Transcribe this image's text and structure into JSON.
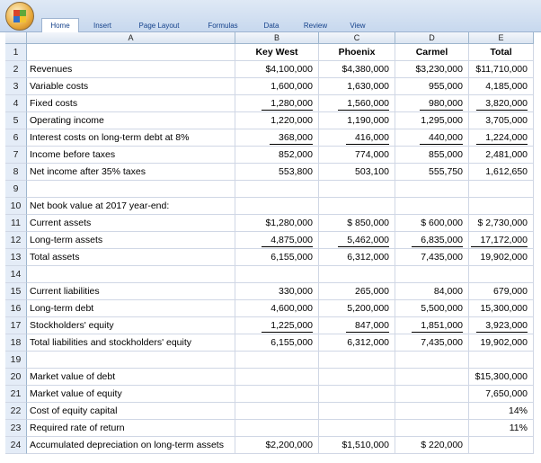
{
  "ribbon": {
    "tabs": [
      "Home",
      "Insert",
      "Page Layout",
      "Formulas",
      "Data",
      "Review",
      "View"
    ],
    "selected_tab": 0
  },
  "sheet": {
    "columns": [
      "A",
      "B",
      "C",
      "D",
      "E"
    ],
    "header_row": 1,
    "underlined_rows": [
      4,
      6,
      12,
      17
    ],
    "rows": [
      {
        "n": "1",
        "cells": [
          null,
          "Key West",
          "Phoenix",
          "Carmel",
          "Total"
        ]
      },
      {
        "n": "2",
        "cells": [
          "Revenues",
          "$4,100,000",
          "$4,380,000",
          "$3,230,000",
          "$11,710,000"
        ]
      },
      {
        "n": "3",
        "cells": [
          "Variable costs",
          "1,600,000",
          "1,630,000",
          "955,000",
          "4,185,000"
        ]
      },
      {
        "n": "4",
        "cells": [
          "Fixed costs",
          "1,280,000",
          "1,560,000",
          "980,000",
          "3,820,000"
        ]
      },
      {
        "n": "5",
        "cells": [
          "Operating income",
          "1,220,000",
          "1,190,000",
          "1,295,000",
          "3,705,000"
        ]
      },
      {
        "n": "6",
        "cells": [
          "Interest costs on long-term debt at 8%",
          "368,000",
          "416,000",
          "440,000",
          "1,224,000"
        ]
      },
      {
        "n": "7",
        "cells": [
          "Income before taxes",
          "852,000",
          "774,000",
          "855,000",
          "2,481,000"
        ]
      },
      {
        "n": "8",
        "cells": [
          "Net income after 35% taxes",
          "553,800",
          "503,100",
          "555,750",
          "1,612,650"
        ]
      },
      {
        "n": "9",
        "cells": [
          null,
          null,
          null,
          null,
          null
        ]
      },
      {
        "n": "10",
        "cells": [
          "Net book value at 2017 year-end:",
          null,
          null,
          null,
          null
        ]
      },
      {
        "n": "11",
        "cells": [
          "Current assets",
          "$1,280,000",
          "$ 850,000",
          "$ 600,000",
          "$ 2,730,000"
        ]
      },
      {
        "n": "12",
        "cells": [
          "Long-term assets",
          "4,875,000",
          "5,462,000",
          "6,835,000",
          "17,172,000"
        ]
      },
      {
        "n": "13",
        "cells": [
          "Total assets",
          "6,155,000",
          "6,312,000",
          "7,435,000",
          "19,902,000"
        ]
      },
      {
        "n": "14",
        "cells": [
          null,
          null,
          null,
          null,
          null
        ]
      },
      {
        "n": "15",
        "cells": [
          "Current liabilities",
          "330,000",
          "265,000",
          "84,000",
          "679,000"
        ]
      },
      {
        "n": "16",
        "cells": [
          "Long-term debt",
          "4,600,000",
          "5,200,000",
          "5,500,000",
          "15,300,000"
        ]
      },
      {
        "n": "17",
        "cells": [
          "Stockholders' equity",
          "1,225,000",
          "847,000",
          "1,851,000",
          "3,923,000"
        ]
      },
      {
        "n": "18",
        "cells": [
          "Total liabilities and stockholders' equity",
          "6,155,000",
          "6,312,000",
          "7,435,000",
          "19,902,000"
        ]
      },
      {
        "n": "19",
        "cells": [
          null,
          null,
          null,
          null,
          null
        ]
      },
      {
        "n": "20",
        "cells": [
          "Market value of debt",
          null,
          null,
          null,
          "$15,300,000"
        ]
      },
      {
        "n": "21",
        "cells": [
          "Market value of equity",
          null,
          null,
          null,
          "7,650,000"
        ]
      },
      {
        "n": "22",
        "cells": [
          "Cost of equity capital",
          null,
          null,
          null,
          "14%"
        ]
      },
      {
        "n": "23",
        "cells": [
          "Required rate of return",
          null,
          null,
          null,
          "11%"
        ]
      },
      {
        "n": "24",
        "cells": [
          "Accumulated depreciation on long-term assets",
          "$2,200,000",
          "$1,510,000",
          "$ 220,000",
          null
        ]
      }
    ]
  }
}
